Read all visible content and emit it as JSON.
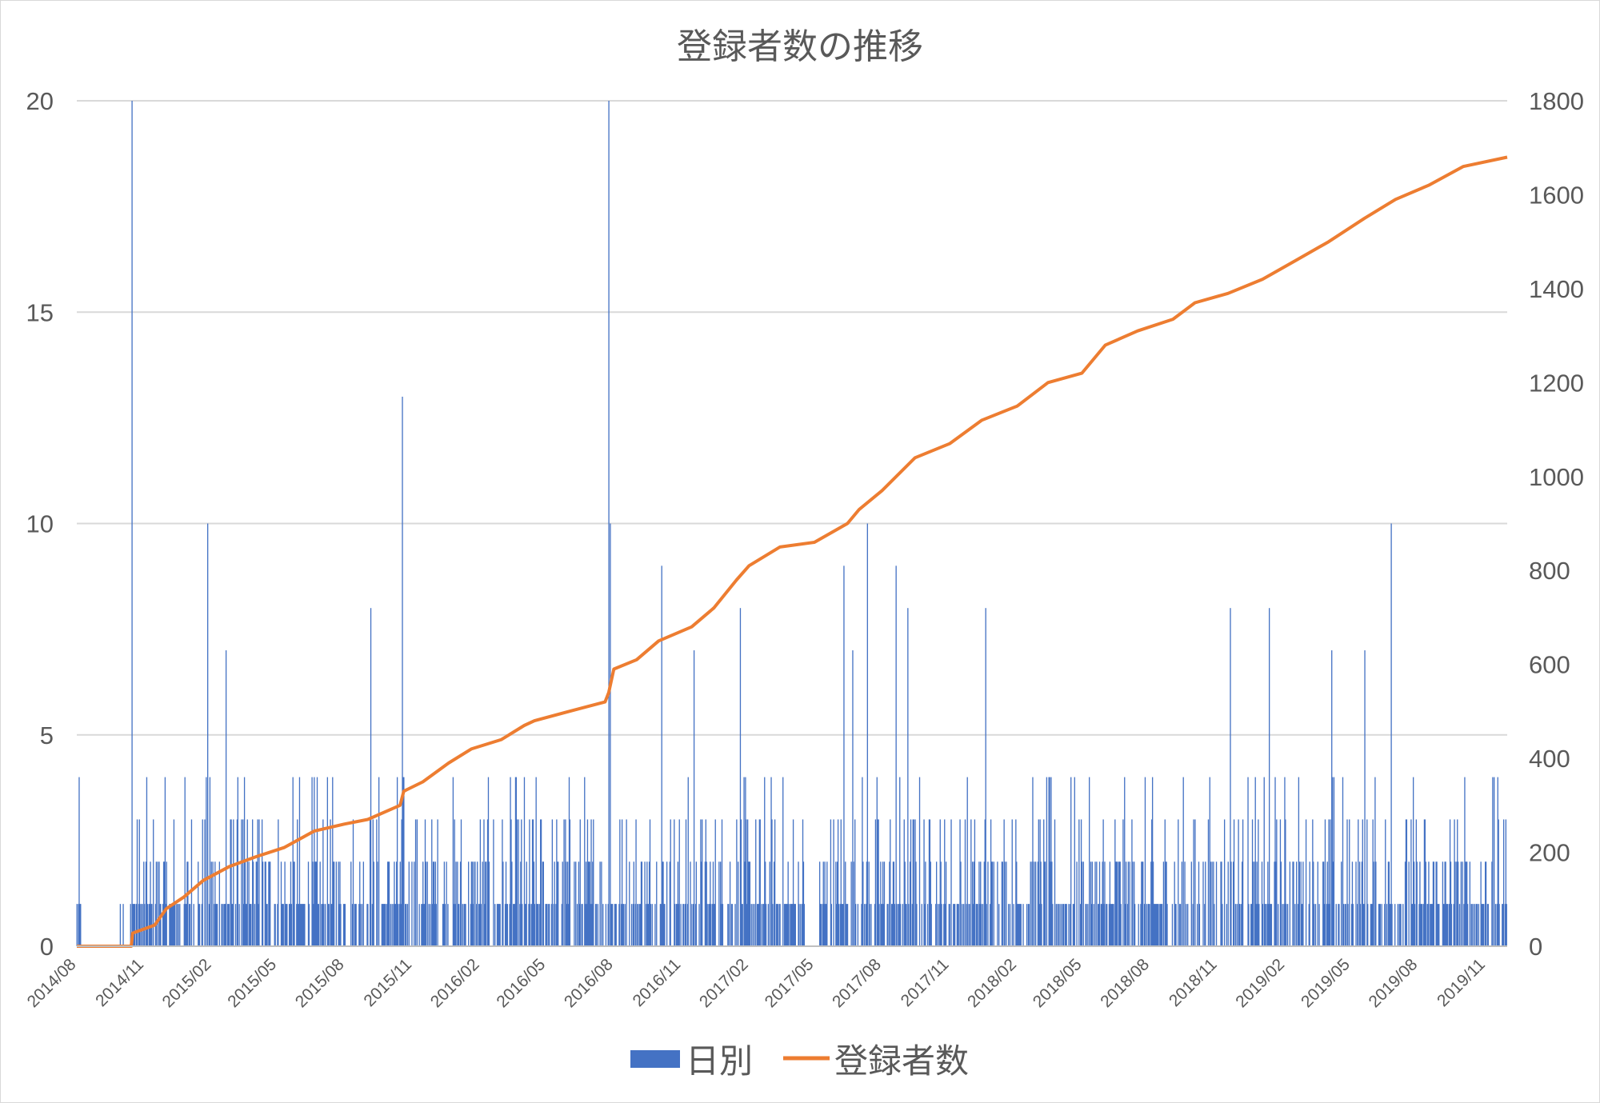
{
  "chart_data": {
    "type": "bar+line",
    "title": "登録者数の推移",
    "xlabel": "",
    "ylabel": "",
    "y_left": {
      "lim": [
        0,
        20
      ],
      "ticks": [
        "0",
        "5",
        "10",
        "15",
        "20"
      ]
    },
    "y_right": {
      "lim": [
        0,
        1800
      ],
      "ticks": [
        "0",
        "200",
        "400",
        "600",
        "800",
        "1000",
        "1200",
        "1400",
        "1600",
        "1800"
      ]
    },
    "x_range": [
      "2014-08-01",
      "2019-11-30"
    ],
    "x_ticks": [
      "2014/08",
      "2014/11",
      "2015/02",
      "2015/05",
      "2015/08",
      "2015/11",
      "2016/02",
      "2016/05",
      "2016/08",
      "2016/11",
      "2017/02",
      "2017/05",
      "2017/08",
      "2017/11",
      "2018/02",
      "2018/05",
      "2018/08",
      "2018/11",
      "2019/02",
      "2019/05",
      "2019/08",
      "2019/11"
    ],
    "grid": true,
    "legend_position": "bottom",
    "series": [
      {
        "name": "日別",
        "kind": "bar",
        "axis": "left",
        "color": "#4472c4",
        "note": "approximate daily registrations read from the chart; spikes listed explicitly, remaining days 0-4",
        "spikes": [
          {
            "date": "2014-10-15",
            "value": 20
          },
          {
            "date": "2015-01-26",
            "value": 10
          },
          {
            "date": "2015-02-20",
            "value": 7
          },
          {
            "date": "2015-09-05",
            "value": 8
          },
          {
            "date": "2015-10-18",
            "value": 13
          },
          {
            "date": "2016-07-25",
            "value": 20
          },
          {
            "date": "2016-07-27",
            "value": 10
          },
          {
            "date": "2016-10-05",
            "value": 9
          },
          {
            "date": "2016-11-18",
            "value": 7
          },
          {
            "date": "2017-01-20",
            "value": 8
          },
          {
            "date": "2017-06-10",
            "value": 9
          },
          {
            "date": "2017-06-22",
            "value": 7
          },
          {
            "date": "2017-07-12",
            "value": 10
          },
          {
            "date": "2017-08-20",
            "value": 9
          },
          {
            "date": "2017-09-05",
            "value": 8
          },
          {
            "date": "2017-12-20",
            "value": 8
          },
          {
            "date": "2018-11-18",
            "value": 8
          },
          {
            "date": "2019-01-10",
            "value": 8
          },
          {
            "date": "2019-04-05",
            "value": 7
          },
          {
            "date": "2019-05-20",
            "value": 7
          },
          {
            "date": "2019-06-25",
            "value": 10
          }
        ]
      },
      {
        "name": "登録者数",
        "kind": "line",
        "axis": "right",
        "color": "#ed7d31",
        "points": [
          [
            "2014-08-01",
            0
          ],
          [
            "2014-10-14",
            0
          ],
          [
            "2014-10-16",
            28
          ],
          [
            "2014-11-15",
            45
          ],
          [
            "2014-12-01",
            80
          ],
          [
            "2014-12-25",
            105
          ],
          [
            "2015-01-20",
            140
          ],
          [
            "2015-02-25",
            170
          ],
          [
            "2015-04-01",
            190
          ],
          [
            "2015-05-10",
            210
          ],
          [
            "2015-06-20",
            245
          ],
          [
            "2015-07-31",
            260
          ],
          [
            "2015-09-01",
            270
          ],
          [
            "2015-10-15",
            300
          ],
          [
            "2015-10-20",
            330
          ],
          [
            "2015-11-15",
            350
          ],
          [
            "2015-12-20",
            390
          ],
          [
            "2016-01-20",
            420
          ],
          [
            "2016-03-01",
            440
          ],
          [
            "2016-04-01",
            470
          ],
          [
            "2016-04-15",
            480
          ],
          [
            "2016-06-01",
            500
          ],
          [
            "2016-07-20",
            520
          ],
          [
            "2016-07-25",
            540
          ],
          [
            "2016-08-01",
            590
          ],
          [
            "2016-09-01",
            610
          ],
          [
            "2016-10-01",
            650
          ],
          [
            "2016-11-15",
            680
          ],
          [
            "2016-12-15",
            720
          ],
          [
            "2017-01-15",
            780
          ],
          [
            "2017-02-01",
            810
          ],
          [
            "2017-03-15",
            850
          ],
          [
            "2017-05-01",
            860
          ],
          [
            "2017-06-15",
            900
          ],
          [
            "2017-07-01",
            930
          ],
          [
            "2017-08-01",
            970
          ],
          [
            "2017-09-15",
            1040
          ],
          [
            "2017-11-01",
            1070
          ],
          [
            "2017-12-15",
            1120
          ],
          [
            "2018-02-01",
            1150
          ],
          [
            "2018-03-15",
            1200
          ],
          [
            "2018-04-30",
            1220
          ],
          [
            "2018-06-01",
            1280
          ],
          [
            "2018-07-15",
            1310
          ],
          [
            "2018-09-01",
            1335
          ],
          [
            "2018-10-01",
            1370
          ],
          [
            "2018-11-15",
            1390
          ],
          [
            "2019-01-01",
            1420
          ],
          [
            "2019-02-15",
            1460
          ],
          [
            "2019-04-01",
            1500
          ],
          [
            "2019-05-20",
            1550
          ],
          [
            "2019-07-01",
            1590
          ],
          [
            "2019-08-15",
            1620
          ],
          [
            "2019-10-01",
            1660
          ],
          [
            "2019-11-30",
            1680
          ]
        ]
      }
    ]
  }
}
